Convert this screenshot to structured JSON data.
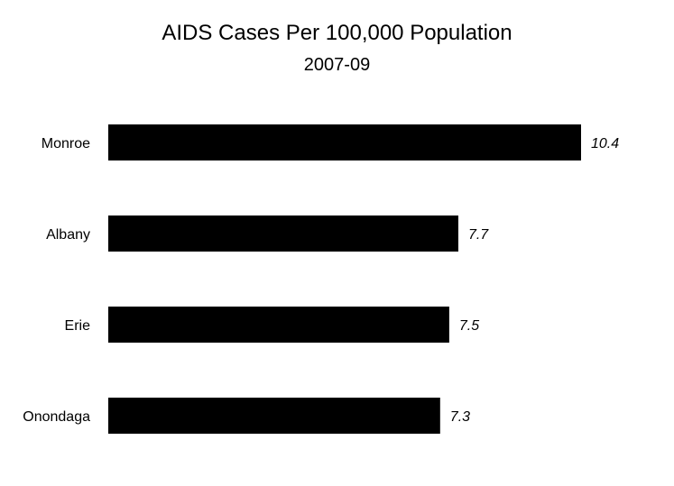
{
  "chart_data": {
    "type": "bar",
    "orientation": "horizontal",
    "title": "AIDS Cases Per 100,000 Population",
    "subtitle": "2007-09",
    "xlabel": "",
    "ylabel": "",
    "categories": [
      "Monroe",
      "Albany",
      "Erie",
      "Onondaga"
    ],
    "values": [
      10.4,
      7.7,
      7.5,
      7.3
    ],
    "data_labels": [
      "10.4",
      "7.7",
      "7.5",
      "7.3"
    ],
    "xlim": [
      0,
      10.4
    ],
    "grid": false,
    "legend": "none",
    "bar_color": "#000000",
    "background_color": "#ffffff",
    "text_color": "#000000"
  }
}
